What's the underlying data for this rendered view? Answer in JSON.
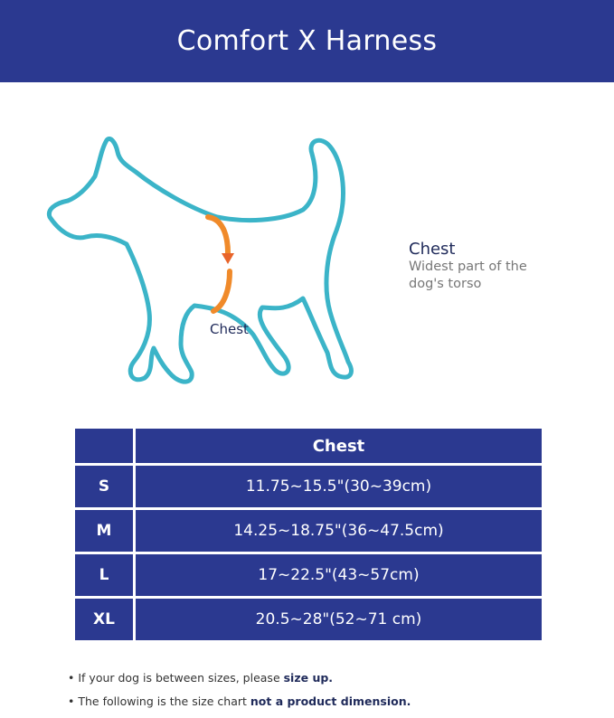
{
  "header": {
    "title": "Comfort X Harness"
  },
  "diagram": {
    "label": "Chest",
    "outline_color": "#3bb4c8",
    "arrow_color": "#f08a2a"
  },
  "measure": {
    "title": "Chest",
    "description": "Widest part of the dog's torso"
  },
  "table": {
    "header": [
      "",
      "Chest"
    ],
    "rows": [
      {
        "size": "S",
        "chest": "11.75~15.5\"(30~39cm)"
      },
      {
        "size": "M",
        "chest": "14.25~18.75\"(36~47.5cm)"
      },
      {
        "size": "L",
        "chest": "17~22.5\"(43~57cm)"
      },
      {
        "size": "XL",
        "chest": "20.5~28\"(52~71 cm)"
      }
    ]
  },
  "notes": [
    {
      "text": "If your dog is between sizes, please ",
      "bold": "size up."
    },
    {
      "text": "The following is the size chart ",
      "bold": "not a product dimension."
    }
  ],
  "colors": {
    "brand": "#2b3990"
  }
}
